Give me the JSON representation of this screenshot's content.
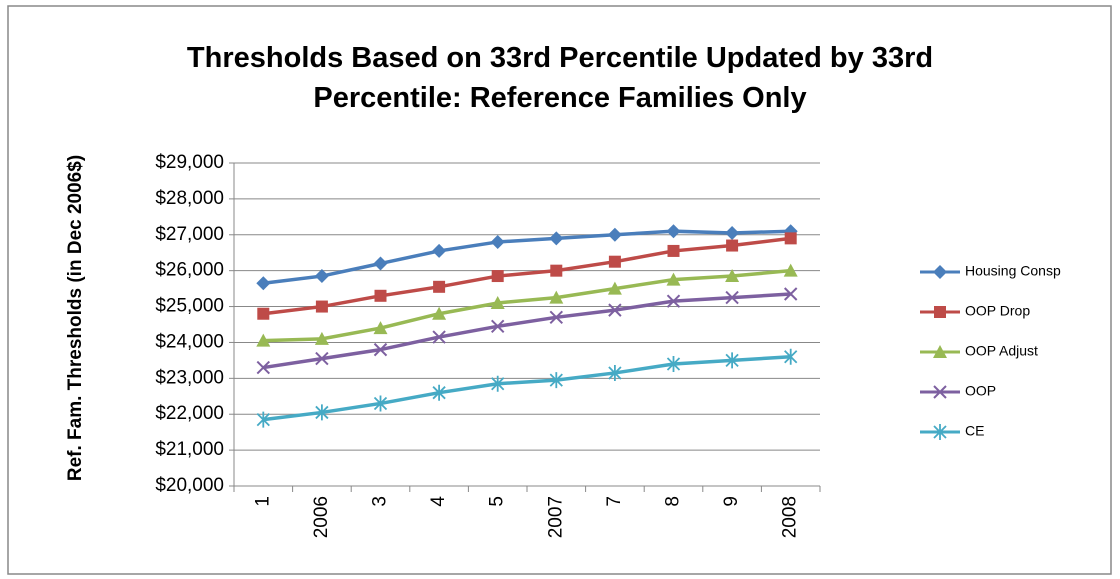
{
  "chart_data": {
    "type": "line",
    "title": "Thresholds Based on 33rd Percentile Updated by 33rd Percentile: Reference Families Only",
    "y_label": "Ref. Fam. Thresholds (in Dec 2006$)",
    "categories": [
      "1",
      "2006",
      "3",
      "4",
      "5",
      "2007",
      "7",
      "8",
      "9",
      "2008"
    ],
    "ylim": [
      20000,
      29000
    ],
    "yticks": [
      {
        "value": 20000,
        "label": "$20,000"
      },
      {
        "value": 21000,
        "label": "$21,000"
      },
      {
        "value": 22000,
        "label": "$22,000"
      },
      {
        "value": 23000,
        "label": "$23,000"
      },
      {
        "value": 24000,
        "label": "$24,000"
      },
      {
        "value": 25000,
        "label": "$25,000"
      },
      {
        "value": 26000,
        "label": "$26,000"
      },
      {
        "value": 27000,
        "label": "$27,000"
      },
      {
        "value": 28000,
        "label": "$28,000"
      },
      {
        "value": 29000,
        "label": "$29,000"
      }
    ],
    "grid": true,
    "legend": "right",
    "series": [
      {
        "name": "Housing Consp",
        "color": "#4a7ebb",
        "marker": "diamond",
        "values": [
          25650,
          25850,
          26200,
          26550,
          26800,
          26900,
          27000,
          27100,
          27050,
          27100
        ]
      },
      {
        "name": "OOP Drop",
        "color": "#be4b48",
        "marker": "square",
        "values": [
          24800,
          25000,
          25300,
          25550,
          25850,
          26000,
          26250,
          26550,
          26700,
          26900
        ]
      },
      {
        "name": "OOP Adjust",
        "color": "#98b954",
        "marker": "triangle",
        "values": [
          24050,
          24100,
          24400,
          24800,
          25100,
          25250,
          25500,
          25750,
          25850,
          26000
        ]
      },
      {
        "name": "OOP",
        "color": "#7d60a0",
        "marker": "x",
        "values": [
          23300,
          23550,
          23800,
          24150,
          24450,
          24700,
          24900,
          25150,
          25250,
          25350
        ]
      },
      {
        "name": "CE",
        "color": "#46aac5",
        "marker": "star",
        "values": [
          21850,
          22050,
          22300,
          22600,
          22850,
          22950,
          23150,
          23400,
          23500,
          23600
        ]
      }
    ]
  }
}
